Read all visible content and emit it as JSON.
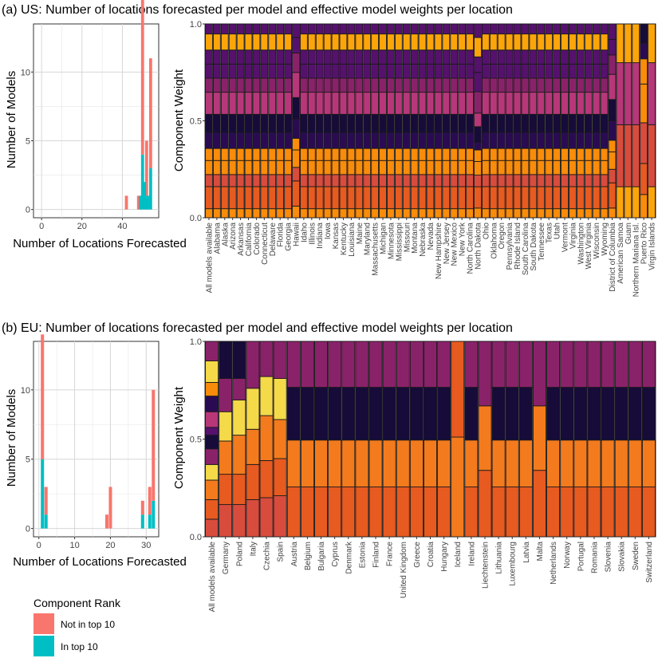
{
  "colors": {
    "not_top10": "#F8766D",
    "in_top10": "#00BFC4",
    "panel_bg": "#FFFFFF",
    "grid": "#D6D6D6",
    "bar_stroke": "#1A1A1A",
    "palette": [
      "#FCA50A",
      "#F98C0A",
      "#E75A20",
      "#D84C3E",
      "#B73779",
      "#8A226A",
      "#56106E",
      "#2A0B53",
      "#160B39",
      "#F4D949",
      "#F37B1D"
    ]
  },
  "legend": {
    "title": "Component Rank",
    "entries": [
      {
        "label": "Not in top 10",
        "color": "#F8766D"
      },
      {
        "label": "In top 10",
        "color": "#00BFC4"
      }
    ]
  },
  "chart_data": [
    {
      "panel": "a",
      "title": "(a) US: Number of locations forecasted per model and effective model weights per location",
      "histogram": {
        "type": "bar",
        "xlabel": "Number of Locations Forecasted",
        "ylabel": "Number of Models",
        "xlim": [
          -4,
          58
        ],
        "ylim": [
          -0.6,
          13.5
        ],
        "xticks": [
          0,
          20,
          40
        ],
        "yticks": [
          0,
          5,
          10
        ],
        "binwidth": 1.5,
        "series": [
          {
            "name": "Not in top 10",
            "x": [
              42,
              48,
              50,
              52,
              54
            ],
            "values": [
              1,
              1,
              12,
              4,
              8
            ]
          },
          {
            "name": "In top 10",
            "x": [
              49,
              50,
              51,
              52,
              53,
              54
            ],
            "values": [
              1,
              4,
              2,
              1,
              1,
              3
            ]
          }
        ]
      },
      "weights": {
        "type": "bar",
        "ylabel": "Component Weight",
        "ylim": [
          0,
          1
        ],
        "yticks": [
          "0.0",
          "0.5",
          "1.0"
        ],
        "categories": [
          "All models available",
          "Alabama",
          "Alaska",
          "Arizona",
          "Arkansas",
          "California",
          "Colorado",
          "Connecticut",
          "Delaware",
          "Florida",
          "Georgia",
          "Hawaii",
          "Idaho",
          "Illinois",
          "Indiana",
          "Iowa",
          "Kansas",
          "Kentucky",
          "Louisiana",
          "Maine",
          "Maryland",
          "Massachusetts",
          "Michigan",
          "Minnesota",
          "Mississippi",
          "Missouri",
          "Montana",
          "Nebraska",
          "Nevada",
          "New Hampshire",
          "New Jersey",
          "New Mexico",
          "New York",
          "North Carolina",
          "North Dakota",
          "Ohio",
          "Oklahoma",
          "Oregon",
          "Pennsylvania",
          "Rhode Island",
          "South Carolina",
          "South Dakota",
          "Tennessee",
          "Texas",
          "Utah",
          "Vermont",
          "Virginia",
          "Washington",
          "West Virginia",
          "Wisconsin",
          "Wyoming",
          "District of Columbia",
          "American Samoa",
          "Guam",
          "Northern Mariana Isl.",
          "Puerto Rico",
          "Virgin Islands"
        ],
        "stacks": {
          "typical": [
            0.045,
            0.11,
            0.06,
            0.07,
            0.06,
            0.08,
            0.09,
            0.11,
            0.07,
            0.07,
            0.07,
            0.08,
            0.05
          ],
          "Hawaii": [
            0.06,
            0.13,
            0.07,
            0.09,
            0.06,
            0.1,
            0.11,
            0.13,
            0.1,
            0.08,
            0.07
          ],
          "North Dakota": [
            0.05,
            0.11,
            0.06,
            0.07,
            0.06,
            0.04,
            0.08,
            0.07,
            0.11,
            0.1,
            0.08,
            0.1,
            0.07
          ],
          "District of Columbia": [
            0.05,
            0.13,
            0.07,
            0.09,
            0.06,
            0.1,
            0.11,
            0.13,
            0.1,
            0.08,
            0.08
          ],
          "American Samoa": [
            0.16,
            0.32,
            0.32,
            0.2
          ],
          "Guam": [
            0.16,
            0.32,
            0.32,
            0.2
          ],
          "Northern Mariana Isl.": [
            0.16,
            0.32,
            0.32,
            0.2
          ],
          "Puerto Rico": [
            0.12,
            0.16,
            0.21,
            0.2,
            0.13,
            0.08,
            0.1
          ],
          "Virgin Islands": [
            0.16,
            0.32,
            0.32,
            0.2
          ]
        }
      }
    },
    {
      "panel": "b",
      "title": "(b) EU: Number of locations forecasted per model and effective model weights per location",
      "histogram": {
        "type": "bar",
        "xlabel": "Number of Locations Forecasted",
        "ylabel": "Number of Models",
        "xlim": [
          -1.5,
          33.5
        ],
        "ylim": [
          -0.6,
          13.5
        ],
        "xticks": [
          0,
          10,
          20,
          30
        ],
        "yticks": [
          0,
          5,
          10
        ],
        "binwidth": 0.9,
        "series": [
          {
            "name": "Not in top 10",
            "x": [
              1,
              2,
              19,
              20,
              29,
              31,
              32
            ],
            "values": [
              9,
              2,
              1,
              3,
              1,
              2,
              8
            ]
          },
          {
            "name": "In top 10",
            "x": [
              1,
              2,
              29,
              31,
              32
            ],
            "values": [
              5,
              1,
              1,
              1,
              2
            ]
          }
        ]
      },
      "weights": {
        "type": "bar",
        "ylabel": "Component Weight",
        "ylim": [
          0,
          1
        ],
        "yticks": [
          "0.0",
          "0.5",
          "1.0"
        ],
        "categories": [
          "All models available",
          "Germany",
          "Poland",
          "Italy",
          "Czechia",
          "Spain",
          "Austria",
          "Belgium",
          "Bulgaria",
          "Cyprus",
          "Denmark",
          "Estonia",
          "Finland",
          "France",
          "United Kingdom",
          "Greece",
          "Croatia",
          "Hungary",
          "Iceland",
          "Ireland",
          "Liechtenstein",
          "Lithuania",
          "Luxembourg",
          "Latvia",
          "Malta",
          "Netherlands",
          "Norway",
          "Portugal",
          "Romania",
          "Slovenia",
          "Slovakia",
          "Sweden",
          "Switzerland"
        ],
        "stacks": {
          "typical": [
            0.255,
            0.24,
            0.27,
            0.235
          ],
          "All models available": [
            0.09,
            0.1,
            0.1,
            0.08,
            0.08,
            0.07,
            0.04,
            0.08,
            0.08,
            0.07,
            0.11,
            0.1
          ],
          "Germany": [
            0.165,
            0.155,
            0.17,
            0.15,
            0.17,
            0.19
          ],
          "Poland": [
            0.165,
            0.155,
            0.2,
            0.18,
            0.11,
            0.19
          ],
          "Italy": [
            0.19,
            0.18,
            0.18,
            0.21,
            0.24
          ],
          "Czechia": [
            0.2,
            0.19,
            0.23,
            0.2,
            0.18
          ],
          "Spain": [
            0.21,
            0.19,
            0.2,
            0.21,
            0.19
          ],
          "Iceland": [
            0.51,
            0.49
          ],
          "Ireland": [
            0.255,
            0.24,
            0.27,
            0.235
          ],
          "Liechtenstein": [
            0.34,
            0.33,
            0.33
          ],
          "Malta": [
            0.34,
            0.33,
            0.33
          ]
        }
      }
    }
  ]
}
